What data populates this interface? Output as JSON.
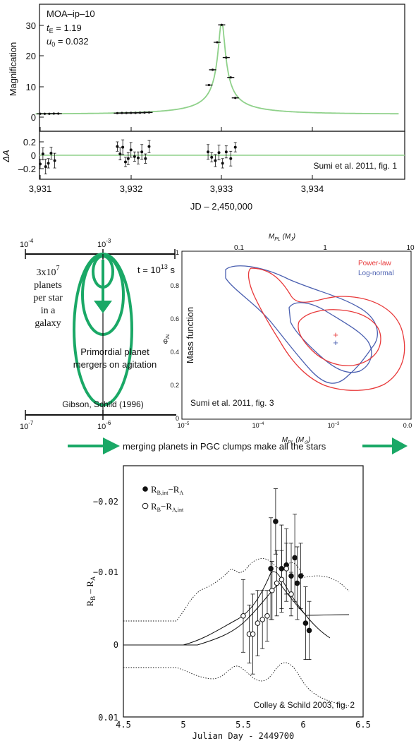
{
  "colors": {
    "model_green": "#8fd18a",
    "arrow_green": "#1aa866",
    "powerlaw_red": "#e8393a",
    "lognormal_blue": "#4a5fb0",
    "ink": "#111111"
  },
  "panel1": {
    "event_name": "MOA–ip–10",
    "tE_label": "t",
    "tE_sub": "E",
    "tE_value": " = 1.19",
    "u0_label": "u",
    "u0_sub": "0",
    "u0_value": " = 0.032",
    "ylabel": "Magnification",
    "resid_ylabel": "ΔA",
    "xlabel": "JD – 2,450,000",
    "credit": "Sumi et al. 2011, fig. 1",
    "yticks": [
      "0",
      "10",
      "20",
      "30"
    ],
    "resid_yticks": [
      "0.2",
      "0",
      "–0.2"
    ],
    "xticks": [
      "3,931",
      "3,932",
      "3,933",
      "3,934"
    ]
  },
  "panel2": {
    "top_ticks": [
      "10",
      "10"
    ],
    "top_exps": [
      "-4",
      "-3"
    ],
    "bottom_ticks": [
      "10",
      "10"
    ],
    "bottom_exps": [
      "-7",
      "-6"
    ],
    "count_base": "3x10",
    "count_exp": "7",
    "count_lines": [
      "planets",
      "per star",
      "in a",
      "galaxy"
    ],
    "time_label": "t = 10",
    "time_exp": "13",
    "time_unit": " s",
    "merger_lines": [
      "Primordial planet",
      "mergers on agitation"
    ],
    "credit": "Gibson, Schild (1996)"
  },
  "panel3": {
    "top_axis_label": "M",
    "top_axis_sub": "PL",
    "top_axis_unit": " (M",
    "top_axis_unit_sub": "J",
    "top_ticks": [
      "0.1",
      "1",
      "10"
    ],
    "ylabel": "Mass function",
    "phi_label": "Φ",
    "phi_sub": "PL",
    "yticks": [
      "0",
      "0.2",
      "0.4",
      "0.6",
      "0.8",
      "1"
    ],
    "xticks_base": [
      "10",
      "10",
      "10"
    ],
    "xticks_exp": [
      "–5",
      "–4",
      "–3"
    ],
    "xtick_last": "0.0",
    "xlabel": "M",
    "xlabel_sub": "PL",
    "xlabel_unit": " (M",
    "xlabel_unit_sub": "⊙",
    "legend": [
      "Power-law",
      "Log-normal"
    ],
    "credit": "Sumi et al. 2011, fig. 3"
  },
  "arrow_caption": "merging planets in PGC clumps make all the stars",
  "panel4": {
    "ylabel_main": "R",
    "ylabel_sub1": "B",
    "ylabel_mid": " – R",
    "ylabel_sub2": "A",
    "xlabel": "Julian Day - 2449700",
    "yticks": [
      "−0.02",
      "−0.01",
      "0",
      "0.01"
    ],
    "xticks": [
      "4.5",
      "5",
      "5.5",
      "6",
      "6.5"
    ],
    "legend1_a": "R",
    "legend1_a_sub": "B,int",
    "legend1_b": "−R",
    "legend1_b_sub": "A",
    "legend2_a": "R",
    "legend2_a_sub": "B",
    "legend2_b": "−R",
    "legend2_b_sub": "A,int",
    "credit": "Colley & Schild 2003, fig. 2"
  },
  "chart_data": [
    {
      "type": "scatter",
      "title": "MOA–ip–10",
      "xlabel": "JD – 2,450,000",
      "ylabel": "Magnification",
      "xlim": [
        3930.95,
        3934.95
      ],
      "ylim": [
        -2,
        34
      ],
      "model": {
        "tE": 1.19,
        "u0": 0.032,
        "t0": 3933.0
      },
      "series": [
        {
          "x": [
            3931.0,
            3931.05,
            3931.1,
            3931.15,
            3931.2,
            3931.85,
            3931.9,
            3931.95,
            3932.0,
            3932.05,
            3932.1,
            3932.15,
            3932.2,
            3932.86,
            3932.9,
            3932.95,
            3933.0,
            3933.05,
            3933.1,
            3933.15
          ],
          "y": [
            1.1,
            1.1,
            1.1,
            1.15,
            1.15,
            1.3,
            1.35,
            1.35,
            1.4,
            1.4,
            1.45,
            1.5,
            1.55,
            10.5,
            15.5,
            24.5,
            30.2,
            19.5,
            13.0,
            6.3
          ]
        }
      ]
    },
    {
      "type": "scatter",
      "ylabel": "ΔA",
      "ylim": [
        -0.3,
        0.3
      ],
      "series": [
        {
          "x": [
            3931.0,
            3931.03,
            3931.06,
            3931.09,
            3931.12,
            3931.16,
            3931.85,
            3931.88,
            3931.91,
            3931.94,
            3931.97,
            3932.0,
            3932.04,
            3932.08,
            3932.12,
            3932.16,
            3932.2,
            3932.85,
            3932.89,
            3932.93,
            3932.97,
            3933.01,
            3933.05,
            3933.1,
            3933.15
          ],
          "y": [
            -0.13,
            0.02,
            -0.17,
            -0.12,
            0.03,
            -0.08,
            0.13,
            0.02,
            0.12,
            -0.1,
            -0.05,
            0.08,
            -0.02,
            -0.04,
            0.05,
            -0.05,
            0.13,
            0.05,
            -0.03,
            -0.08,
            0.04,
            -0.12,
            0.05,
            -0.05,
            0.12
          ]
        }
      ]
    },
    {
      "type": "line",
      "xlabel": "M (M⊙)",
      "ylabel": "Φ",
      "xlim": [
        -5,
        -2
      ],
      "ylim": [
        0,
        1
      ],
      "series": [
        {
          "name": "Power-law",
          "best_fit": [
            -3.0,
            0.49
          ]
        },
        {
          "name": "Log-normal",
          "best_fit": [
            -3.0,
            0.46
          ]
        }
      ]
    },
    {
      "type": "line",
      "xlabel": "Julian Day - 2449700",
      "ylabel": "R – R",
      "xlim": [
        4.5,
        6.5
      ],
      "ylim": [
        0.01,
        -0.025
      ],
      "series": [
        {
          "name": "R−R (filled)",
          "x": [
            5.73,
            5.77,
            5.82,
            5.86,
            5.9,
            5.93,
            5.95,
            5.98,
            6.02,
            6.05
          ],
          "y": [
            -0.0105,
            -0.017,
            -0.0105,
            -0.011,
            -0.0095,
            -0.012,
            -0.0085,
            -0.0095,
            -0.003,
            -0.002
          ]
        },
        {
          "name": "R−R (open)",
          "x": [
            5.5,
            5.55,
            5.58,
            5.62,
            5.66,
            5.7,
            5.74,
            5.78,
            5.82,
            5.86,
            5.9
          ],
          "y": [
            -0.004,
            -0.0015,
            -0.0015,
            -0.003,
            -0.0035,
            -0.004,
            -0.0075,
            -0.0085,
            -0.009,
            -0.0105,
            -0.007
          ]
        },
        {
          "name": "model",
          "x": [
            4.5,
            4.9,
            5.0,
            5.2,
            5.4,
            5.55,
            5.65,
            5.75,
            5.8,
            5.85,
            5.9,
            5.95,
            6.0,
            6.1,
            6.2,
            6.3
          ],
          "y": [
            0,
            0,
            0,
            -0.0003,
            -0.0013,
            -0.003,
            -0.0055,
            -0.0095,
            -0.012,
            -0.0095,
            -0.0065,
            -0.0035,
            -0.0015,
            -0.0002,
            0.0005,
            0.001
          ]
        }
      ]
    }
  ]
}
